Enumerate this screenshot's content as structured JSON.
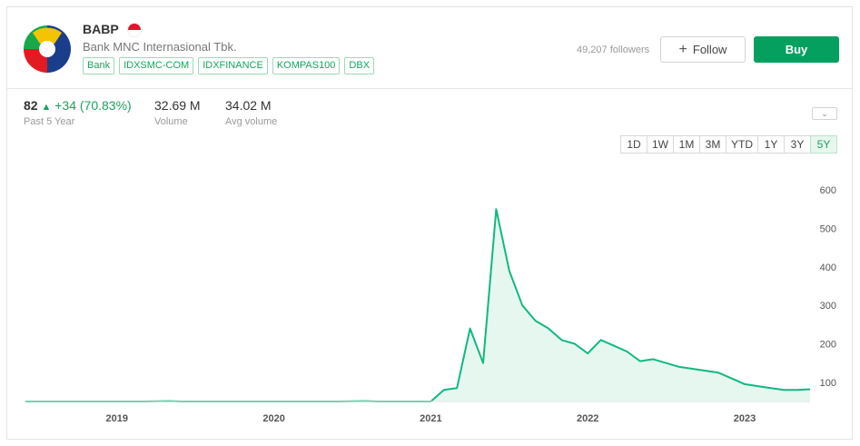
{
  "stock": {
    "ticker": "BABP",
    "company": "Bank MNC Internasional Tbk.",
    "flag_colors": [
      "#e8112d",
      "#ffffff"
    ],
    "tags": [
      "Bank",
      "IDXSMC-COM",
      "IDXFINANCE",
      "KOMPAS100",
      "DBX"
    ],
    "followers": "49,207 followers",
    "follow_label": "Follow",
    "buy_label": "Buy",
    "colors": {
      "accent": "#05a05f",
      "line": "#10b981",
      "fill": "#e6f7f0"
    }
  },
  "stats": {
    "price": "82",
    "change": "+34 (70.83%)",
    "period": "Past 5 Year",
    "volume": "32.69 M",
    "volume_label": "Volume",
    "avg_volume": "34.02 M",
    "avg_volume_label": "Avg volume"
  },
  "ranges": [
    "1D",
    "1W",
    "1M",
    "3M",
    "YTD",
    "1Y",
    "3Y",
    "5Y"
  ],
  "active_range": "5Y",
  "chart_data": {
    "type": "area",
    "title": "",
    "xlabel": "",
    "ylabel": "",
    "x_ticks": [
      "2019",
      "2020",
      "2021",
      "2022",
      "2023"
    ],
    "y_ticks": [
      100,
      200,
      300,
      400,
      500,
      600
    ],
    "ylim": [
      50,
      650
    ],
    "xlim": [
      "2018-06",
      "2023-06"
    ],
    "grid": false,
    "y_axis_side": "right",
    "series": [
      {
        "x": [
          "2018-06",
          "2018-09",
          "2018-12",
          "2019-03",
          "2019-05",
          "2019-06",
          "2019-09",
          "2019-12",
          "2020-03",
          "2020-06",
          "2020-08",
          "2020-09",
          "2020-12",
          "2021-01",
          "2021-02",
          "2021-03",
          "2021-04",
          "2021-05",
          "2021-06",
          "2021-07",
          "2021-08",
          "2021-09",
          "2021-10",
          "2021-11",
          "2021-12",
          "2022-01",
          "2022-02",
          "2022-03",
          "2022-04",
          "2022-05",
          "2022-06",
          "2022-07",
          "2022-08",
          "2022-09",
          "2022-10",
          "2022-11",
          "2022-12",
          "2023-01",
          "2023-02",
          "2023-03",
          "2023-04",
          "2023-05",
          "2023-06"
        ],
        "values": [
          50,
          50,
          50,
          50,
          51,
          50,
          50,
          50,
          50,
          50,
          51,
          50,
          50,
          50,
          80,
          85,
          240,
          150,
          550,
          390,
          300,
          260,
          240,
          210,
          200,
          175,
          210,
          195,
          180,
          155,
          160,
          150,
          140,
          135,
          130,
          125,
          110,
          95,
          90,
          85,
          80,
          80,
          82
        ]
      }
    ]
  }
}
